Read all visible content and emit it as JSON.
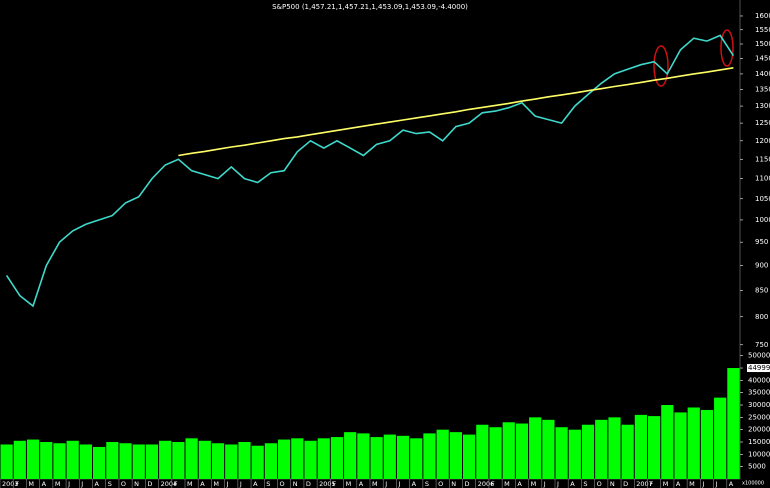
{
  "chart_data": {
    "type": "line",
    "title": "S&P500 (1,457.21,1,457.21,1,453.09,1,453.09,-4.4000)",
    "categories": [
      "2003",
      "F",
      "M",
      "A",
      "M",
      "J",
      "J",
      "A",
      "S",
      "O",
      "N",
      "D",
      "2004",
      "F",
      "M",
      "A",
      "M",
      "J",
      "J",
      "A",
      "S",
      "O",
      "N",
      "D",
      "2005",
      "F",
      "M",
      "A",
      "M",
      "J",
      "J",
      "A",
      "S",
      "O",
      "N",
      "D",
      "2006",
      "F",
      "M",
      "A",
      "M",
      "J",
      "J",
      "A",
      "S",
      "O",
      "N",
      "D",
      "2007",
      "F",
      "M",
      "A",
      "M",
      "J",
      "J",
      "A"
    ],
    "log_scale": true,
    "ylim": [
      741,
      1660
    ],
    "yticks": [
      750,
      800,
      850,
      900,
      950,
      1000,
      1050,
      1100,
      1150,
      1200,
      1250,
      1300,
      1350,
      1400,
      1450,
      1500,
      1550,
      1600
    ],
    "y2lim": [
      0,
      51500
    ],
    "y2ticks": [
      5000,
      10000,
      15000,
      20000,
      25000,
      30000,
      35000,
      40000,
      45000,
      50000
    ],
    "y2_unit": "x100000",
    "series": [
      {
        "type": "line",
        "color": "#3fd9cc",
        "values": [
          880,
          840,
          820,
          900,
          950,
          975,
          990,
          1000,
          1010,
          1040,
          1055,
          1100,
          1135,
          1150,
          1120,
          1110,
          1100,
          1130,
          1100,
          1090,
          1115,
          1120,
          1170,
          1200,
          1180,
          1200,
          1180,
          1160,
          1190,
          1200,
          1230,
          1220,
          1225,
          1200,
          1240,
          1250,
          1280,
          1285,
          1295,
          1310,
          1270,
          1260,
          1250,
          1300,
          1335,
          1370,
          1400,
          1415,
          1430,
          1440,
          1400,
          1480,
          1520,
          1510,
          1530,
          1460
        ]
      },
      {
        "type": "line",
        "color": "#ffff66",
        "values": [
          null,
          null,
          null,
          null,
          null,
          null,
          null,
          null,
          null,
          null,
          null,
          null,
          null,
          1160,
          1166,
          1171,
          1177,
          1183,
          1188,
          1194,
          1200,
          1206,
          1211,
          1217,
          1223,
          1229,
          1235,
          1241,
          1247,
          1253,
          1259,
          1265,
          1271,
          1277,
          1283,
          1290,
          1296,
          1302,
          1308,
          1315,
          1321,
          1328,
          1334,
          1340,
          1347,
          1353,
          1360,
          1366,
          1373,
          1380,
          1386,
          1393,
          1400,
          1406,
          1413,
          1420
        ]
      },
      {
        "type": "bar",
        "axis": "y2",
        "color": "#00ff00",
        "values": [
          14000,
          15500,
          16000,
          15000,
          14500,
          15500,
          14000,
          13000,
          15000,
          14500,
          14000,
          14000,
          15500,
          15000,
          16500,
          15500,
          14500,
          14000,
          15000,
          13500,
          14500,
          16000,
          16500,
          15500,
          16500,
          17000,
          19000,
          18500,
          17000,
          18000,
          17500,
          16500,
          18500,
          20000,
          19000,
          18000,
          22000,
          21000,
          23000,
          22500,
          25000,
          24000,
          21000,
          20000,
          22000,
          24000,
          25000,
          22000,
          26000,
          25500,
          30000,
          27000,
          29000,
          28000,
          33000,
          44999
        ]
      }
    ]
  }
}
